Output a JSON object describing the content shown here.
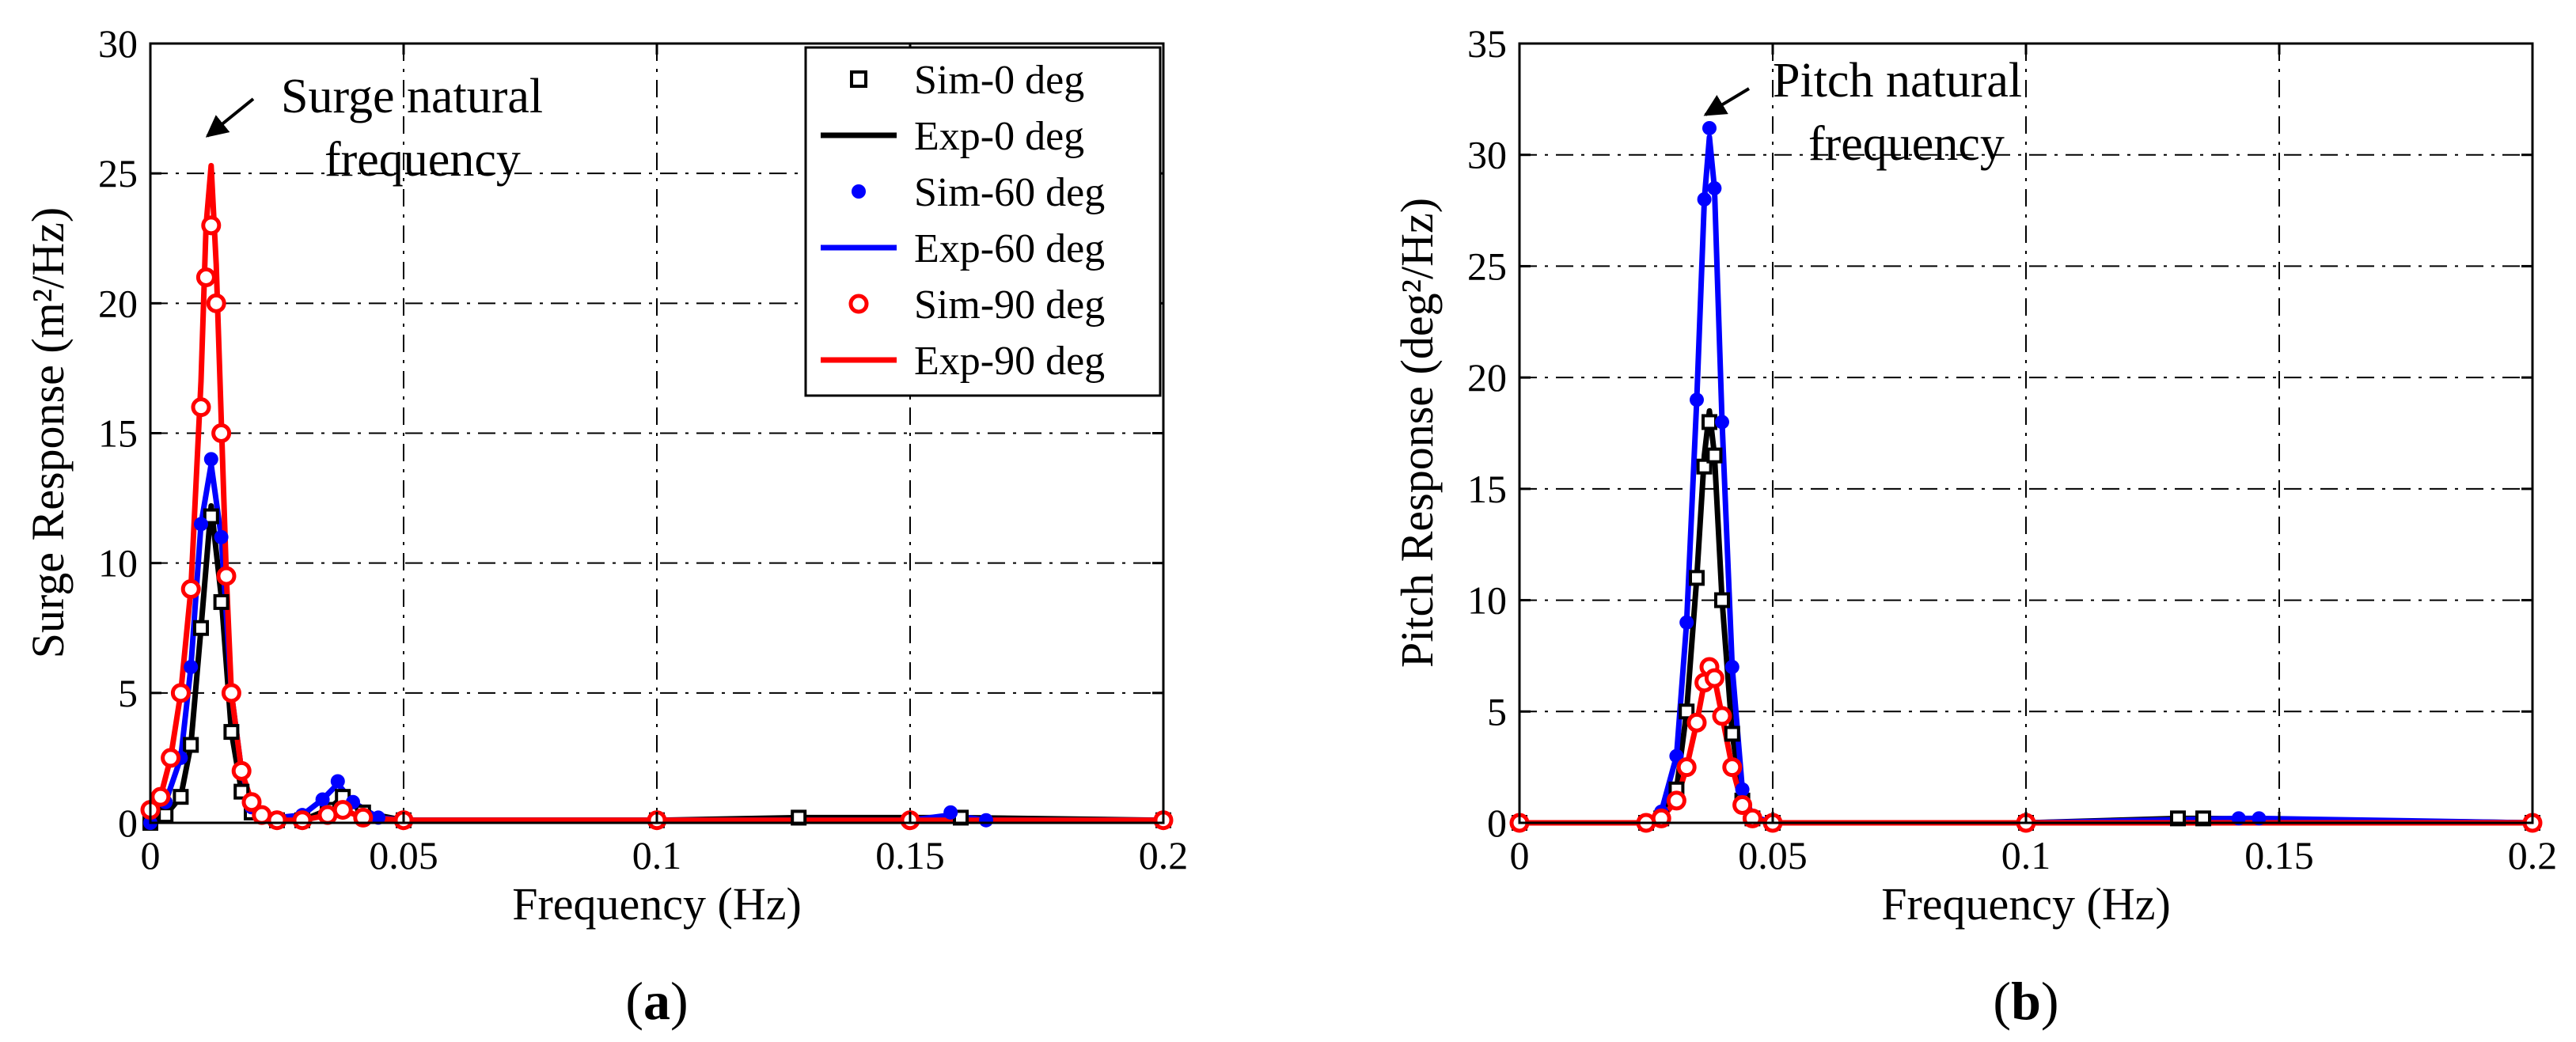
{
  "colors": {
    "black": "#000000",
    "blue": "#0000ff",
    "red": "#ff0000",
    "grid": "#000000"
  },
  "panels": [
    {
      "panel_label": "a",
      "annotation": [
        "Surge natural",
        "frequency"
      ],
      "legend": [
        {
          "label": "Sim-0 deg",
          "color": "#000000",
          "style": "square-marker"
        },
        {
          "label": "Exp-0 deg",
          "color": "#000000",
          "style": "line"
        },
        {
          "label": "Sim-60 deg",
          "color": "#0000ff",
          "style": "dot-marker"
        },
        {
          "label": "Exp-60 deg",
          "color": "#0000ff",
          "style": "line"
        },
        {
          "label": "Sim-90 deg",
          "color": "#ff0000",
          "style": "circle-marker"
        },
        {
          "label": "Exp-90 deg",
          "color": "#ff0000",
          "style": "line"
        }
      ]
    },
    {
      "panel_label": "b",
      "annotation": [
        "Pitch natural",
        "frequency"
      ],
      "legend": []
    }
  ],
  "chart_data": [
    {
      "type": "line",
      "xlabel": "Frequency (Hz)",
      "ylabel": "Surge Response (m²/Hz)",
      "xlim": [
        0,
        0.2
      ],
      "ylim": [
        0,
        30
      ],
      "xticks": [
        0,
        0.05,
        0.1,
        0.15,
        0.2
      ],
      "xtick_labels": [
        "0",
        "0.05",
        "0.1",
        "0.15",
        "0.2"
      ],
      "yticks": [
        0,
        5,
        10,
        15,
        20,
        25,
        30
      ],
      "ytick_labels": [
        "0",
        "5",
        "10",
        "15",
        "20",
        "25",
        "30"
      ],
      "grid": true,
      "legend_position": "top-right",
      "series": [
        {
          "name": "Sim-0 deg",
          "color": "#000000",
          "marker": "square",
          "x": [
            0,
            0.003,
            0.006,
            0.008,
            0.01,
            0.012,
            0.014,
            0.016,
            0.018,
            0.02,
            0.025,
            0.03,
            0.035,
            0.038,
            0.042,
            0.05,
            0.1,
            0.128,
            0.16,
            0.2
          ],
          "y": [
            0,
            0.3,
            1.0,
            3.0,
            7.5,
            11.8,
            8.5,
            3.5,
            1.2,
            0.4,
            0.1,
            0.1,
            0.5,
            1.0,
            0.4,
            0.1,
            0.1,
            0.2,
            0.2,
            0.1
          ]
        },
        {
          "name": "Exp-0 deg",
          "color": "#000000",
          "marker": "none",
          "x": [
            0,
            0.003,
            0.006,
            0.008,
            0.01,
            0.012,
            0.014,
            0.016,
            0.018,
            0.02,
            0.025,
            0.03,
            0.035,
            0.038,
            0.042,
            0.05,
            0.1,
            0.128,
            0.16,
            0.2
          ],
          "y": [
            0,
            0.3,
            1.0,
            3.0,
            7.5,
            12.2,
            8.7,
            3.5,
            1.2,
            0.4,
            0.1,
            0.1,
            0.5,
            1.0,
            0.4,
            0.1,
            0.1,
            0.2,
            0.2,
            0.1
          ]
        },
        {
          "name": "Sim-60 deg",
          "color": "#0000ff",
          "marker": "dot",
          "x": [
            0,
            0.003,
            0.006,
            0.008,
            0.01,
            0.012,
            0.014,
            0.016,
            0.018,
            0.02,
            0.025,
            0.03,
            0.034,
            0.037,
            0.04,
            0.045,
            0.05,
            0.1,
            0.15,
            0.158,
            0.165,
            0.2
          ],
          "y": [
            0,
            0.8,
            2.5,
            6.0,
            11.5,
            14.0,
            11.0,
            5.0,
            2.0,
            0.6,
            0.2,
            0.3,
            0.9,
            1.6,
            0.8,
            0.2,
            0.1,
            0.1,
            0.1,
            0.4,
            0.1,
            0.1
          ]
        },
        {
          "name": "Exp-60 deg",
          "color": "#0000ff",
          "marker": "none",
          "x": [
            0,
            0.003,
            0.006,
            0.008,
            0.01,
            0.012,
            0.014,
            0.016,
            0.018,
            0.02,
            0.025,
            0.03,
            0.034,
            0.037,
            0.04,
            0.045,
            0.05,
            0.1,
            0.15,
            0.158,
            0.165,
            0.2
          ],
          "y": [
            0,
            0.8,
            2.5,
            6.0,
            11.5,
            13.8,
            11.0,
            5.0,
            2.0,
            0.6,
            0.2,
            0.3,
            0.9,
            1.5,
            0.8,
            0.2,
            0.1,
            0.1,
            0.1,
            0.3,
            0.1,
            0.1
          ]
        },
        {
          "name": "Sim-90 deg",
          "color": "#ff0000",
          "marker": "circle",
          "x": [
            0,
            0.002,
            0.004,
            0.006,
            0.008,
            0.01,
            0.011,
            0.012,
            0.013,
            0.014,
            0.015,
            0.016,
            0.018,
            0.02,
            0.022,
            0.025,
            0.03,
            0.035,
            0.038,
            0.042,
            0.05,
            0.1,
            0.15,
            0.2
          ],
          "y": [
            0.5,
            1.0,
            2.5,
            5.0,
            9.0,
            16.0,
            21.0,
            23.0,
            20.0,
            15.0,
            9.5,
            5.0,
            2.0,
            0.8,
            0.3,
            0.1,
            0.1,
            0.3,
            0.5,
            0.2,
            0.1,
            0.1,
            0.1,
            0.1
          ]
        },
        {
          "name": "Exp-90 deg",
          "color": "#ff0000",
          "marker": "none",
          "x": [
            0,
            0.002,
            0.004,
            0.006,
            0.008,
            0.01,
            0.011,
            0.012,
            0.013,
            0.014,
            0.015,
            0.016,
            0.018,
            0.02,
            0.022,
            0.025,
            0.03,
            0.035,
            0.038,
            0.042,
            0.05,
            0.1,
            0.15,
            0.2
          ],
          "y": [
            0.5,
            1.0,
            2.5,
            5.0,
            9.0,
            17.0,
            23.0,
            25.3,
            21.5,
            15.5,
            9.5,
            5.0,
            2.0,
            0.8,
            0.3,
            0.1,
            0.1,
            0.3,
            0.5,
            0.2,
            0.1,
            0.1,
            0.1,
            0.1
          ]
        }
      ]
    },
    {
      "type": "line",
      "xlabel": "Frequency (Hz)",
      "ylabel": "Pitch Response (deg²/Hz)",
      "xlim": [
        0,
        0.2
      ],
      "ylim": [
        0,
        35
      ],
      "xticks": [
        0,
        0.05,
        0.1,
        0.15,
        0.2
      ],
      "xtick_labels": [
        "0",
        "0.05",
        "0.1",
        "0.15",
        "0.2"
      ],
      "yticks": [
        0,
        5,
        10,
        15,
        20,
        25,
        30,
        35
      ],
      "ytick_labels": [
        "0",
        "5",
        "10",
        "15",
        "20",
        "25",
        "30",
        "35"
      ],
      "grid": true,
      "legend_position": "none",
      "series": [
        {
          "name": "Sim-0 deg",
          "color": "#000000",
          "marker": "square",
          "x": [
            0,
            0.025,
            0.028,
            0.031,
            0.033,
            0.035,
            0.0365,
            0.0375,
            0.0385,
            0.04,
            0.042,
            0.044,
            0.046,
            0.05,
            0.1,
            0.13,
            0.135,
            0.2
          ],
          "y": [
            0,
            0,
            0.2,
            1.5,
            5.0,
            11.0,
            16.0,
            18.0,
            16.5,
            10.0,
            4.0,
            1.0,
            0.2,
            0,
            0,
            0.2,
            0.2,
            0
          ]
        },
        {
          "name": "Exp-0 deg",
          "color": "#000000",
          "marker": "none",
          "x": [
            0,
            0.025,
            0.028,
            0.031,
            0.033,
            0.035,
            0.0365,
            0.0375,
            0.0385,
            0.04,
            0.042,
            0.044,
            0.046,
            0.05,
            0.1,
            0.13,
            0.135,
            0.2
          ],
          "y": [
            0,
            0,
            0.2,
            1.5,
            5.0,
            11.0,
            16.5,
            18.5,
            16.5,
            10.0,
            4.0,
            1.0,
            0.2,
            0,
            0,
            0.2,
            0.2,
            0
          ]
        },
        {
          "name": "Sim-60 deg",
          "color": "#0000ff",
          "marker": "dot",
          "x": [
            0,
            0.025,
            0.028,
            0.031,
            0.033,
            0.035,
            0.0365,
            0.0375,
            0.0385,
            0.04,
            0.042,
            0.044,
            0.046,
            0.05,
            0.1,
            0.142,
            0.146,
            0.2
          ],
          "y": [
            0,
            0,
            0.5,
            3.0,
            9.0,
            19.0,
            28.0,
            31.2,
            28.5,
            18.0,
            7.0,
            1.5,
            0.3,
            0,
            0,
            0.2,
            0.2,
            0
          ]
        },
        {
          "name": "Exp-60 deg",
          "color": "#0000ff",
          "marker": "none",
          "x": [
            0,
            0.025,
            0.028,
            0.031,
            0.033,
            0.035,
            0.0365,
            0.0375,
            0.0385,
            0.04,
            0.042,
            0.044,
            0.046,
            0.05,
            0.1,
            0.142,
            0.146,
            0.2
          ],
          "y": [
            0,
            0,
            0.5,
            3.0,
            9.0,
            19.0,
            28.0,
            30.8,
            28.5,
            18.0,
            7.0,
            1.5,
            0.3,
            0,
            0,
            0.2,
            0.2,
            0
          ]
        },
        {
          "name": "Sim-90 deg",
          "color": "#ff0000",
          "marker": "circle",
          "x": [
            0,
            0.025,
            0.028,
            0.031,
            0.033,
            0.035,
            0.0365,
            0.0375,
            0.0385,
            0.04,
            0.042,
            0.044,
            0.046,
            0.05,
            0.1,
            0.2
          ],
          "y": [
            0,
            0,
            0.2,
            1.0,
            2.5,
            4.5,
            6.3,
            7.0,
            6.5,
            4.8,
            2.5,
            0.8,
            0.2,
            0,
            0,
            0
          ]
        },
        {
          "name": "Exp-90 deg",
          "color": "#ff0000",
          "marker": "none",
          "x": [
            0,
            0.025,
            0.028,
            0.031,
            0.033,
            0.035,
            0.0365,
            0.0375,
            0.0385,
            0.04,
            0.042,
            0.044,
            0.046,
            0.05,
            0.1,
            0.2
          ],
          "y": [
            0,
            0,
            0.2,
            1.0,
            2.5,
            4.5,
            6.3,
            7.0,
            6.5,
            4.8,
            2.5,
            0.8,
            0.2,
            0,
            0,
            0
          ]
        }
      ]
    }
  ]
}
